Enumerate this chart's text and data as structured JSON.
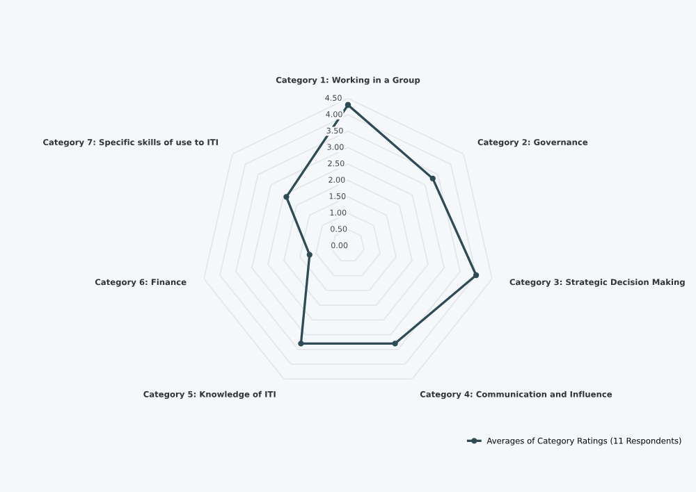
{
  "chart_data": {
    "type": "radar",
    "categories": [
      "Category 1: Working in a Group",
      "Category 2: Governance",
      "Category 3: Strategic Decision Making",
      "Category 4: Communication and Influence",
      "Category 5: Knowledge of ITI",
      "Category 6: Finance",
      "Category 7: Specific skills of use to ITI"
    ],
    "series": [
      {
        "name": "Averages of Category Ratings (11 Respondents)",
        "color": "#2f4b55",
        "values": [
          4.3,
          3.3,
          4.0,
          3.3,
          3.3,
          1.2,
          2.4
        ]
      }
    ],
    "ylim": [
      0,
      4.5
    ],
    "yticks": [
      {
        "value": 0,
        "label": "0.00"
      },
      {
        "value": 0.5,
        "label": "0.50"
      },
      {
        "value": 1,
        "label": "1.00"
      },
      {
        "value": 1.5,
        "label": "1.50"
      },
      {
        "value": 2,
        "label": "2.00"
      },
      {
        "value": 2.5,
        "label": "2.50"
      },
      {
        "value": 3,
        "label": "3.00"
      },
      {
        "value": 3.5,
        "label": "3.50"
      },
      {
        "value": 4,
        "label": "4.00"
      },
      {
        "value": 4.5,
        "label": "4.50"
      }
    ],
    "grid": true,
    "legend": "bottom right",
    "marker": "circle",
    "line_style": "solid"
  }
}
